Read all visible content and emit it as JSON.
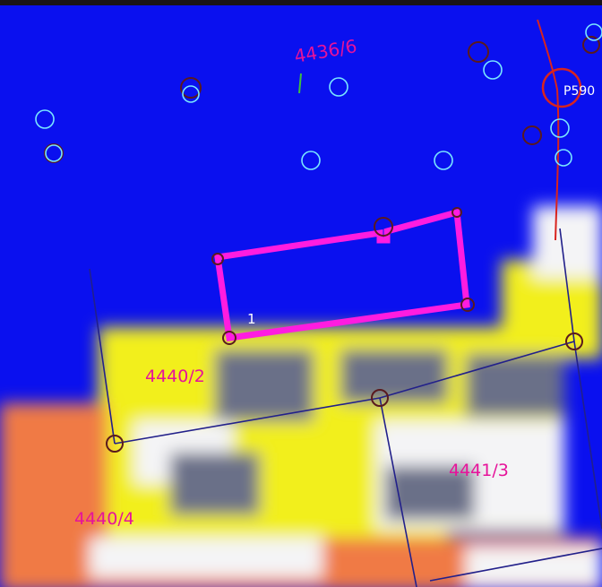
{
  "map": {
    "parcels": [
      {
        "label": "4436/6"
      },
      {
        "label": "4440/2"
      },
      {
        "label": "4441/3"
      },
      {
        "label": "4440/4"
      }
    ],
    "building": {
      "number": "1"
    },
    "point_label": "P590",
    "colors": {
      "background_blue": "#0a10ef",
      "yellow_area": "#f2ef1c",
      "orange_area": "#f07a45",
      "gray_blocks": "#6b6f88",
      "white_area": "#f4f4f6",
      "building_outline": "#ff1ce0",
      "parcel_label": "#e6139a",
      "parcel_line": "#22208a",
      "marker_cyan": "#79e6ff",
      "marker_dark": "#5a1a1e",
      "red_line": "#d8241e",
      "tick_green": "#3fbf3f"
    },
    "icons": [
      "survey-point-icon",
      "vertex-marker-icon"
    ]
  }
}
